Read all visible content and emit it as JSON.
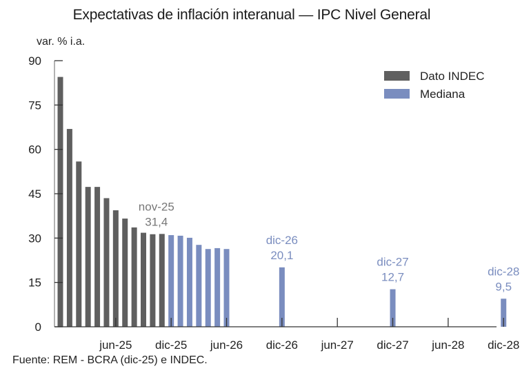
{
  "chart_data": {
    "type": "bar",
    "title": "Expectativas de inflación interanual — IPC Nivel General",
    "ylabel": "var. % i.a.",
    "xlabel": "",
    "ylim": [
      0,
      90
    ],
    "yticks": [
      0,
      15,
      30,
      45,
      60,
      75,
      90
    ],
    "xtick_labels": [
      "jun-25",
      "dic-25",
      "jun-26",
      "dic-26",
      "jun-27",
      "dic-27",
      "jun-28",
      "dic-28"
    ],
    "grid": false,
    "legend_position": "top-right",
    "series": [
      {
        "name": "Dato INDEC",
        "color": "#5f5f5f",
        "points": [
          {
            "x": "dic-24",
            "value": 84.5
          },
          {
            "x": "ene-25",
            "value": 66.9
          },
          {
            "x": "feb-25",
            "value": 55.9
          },
          {
            "x": "mar-25",
            "value": 47.3
          },
          {
            "x": "abr-25",
            "value": 47.3
          },
          {
            "x": "may-25",
            "value": 43.5
          },
          {
            "x": "jun-25",
            "value": 39.4
          },
          {
            "x": "jul-25",
            "value": 36.6
          },
          {
            "x": "ago-25",
            "value": 33.6
          },
          {
            "x": "sep-25",
            "value": 31.8
          },
          {
            "x": "oct-25",
            "value": 31.3
          },
          {
            "x": "nov-25",
            "value": 31.4
          }
        ]
      },
      {
        "name": "Mediana",
        "color": "#7a8dbf",
        "points": [
          {
            "x": "dic-25",
            "value": 31.0
          },
          {
            "x": "ene-26",
            "value": 30.8
          },
          {
            "x": "feb-26",
            "value": 30.1
          },
          {
            "x": "mar-26",
            "value": 27.7
          },
          {
            "x": "abr-26",
            "value": 26.3
          },
          {
            "x": "may-26",
            "value": 26.6
          },
          {
            "x": "jun-26",
            "value": 26.3
          },
          {
            "x": "dic-26",
            "value": 20.1
          },
          {
            "x": "dic-27",
            "value": 12.7
          },
          {
            "x": "dic-28",
            "value": 9.5
          }
        ]
      }
    ],
    "annotations": [
      {
        "x": "nov-25",
        "label": "nov-25",
        "value_text": "31,4",
        "series": "Dato INDEC"
      },
      {
        "x": "dic-26",
        "label": "dic-26",
        "value_text": "20,1",
        "series": "Mediana"
      },
      {
        "x": "dic-27",
        "label": "dic-27",
        "value_text": "12,7",
        "series": "Mediana"
      },
      {
        "x": "dic-28",
        "label": "dic-28",
        "value_text": "9,5",
        "series": "Mediana"
      }
    ],
    "source": "Fuente: REM - BCRA (dic-25) e INDEC."
  }
}
